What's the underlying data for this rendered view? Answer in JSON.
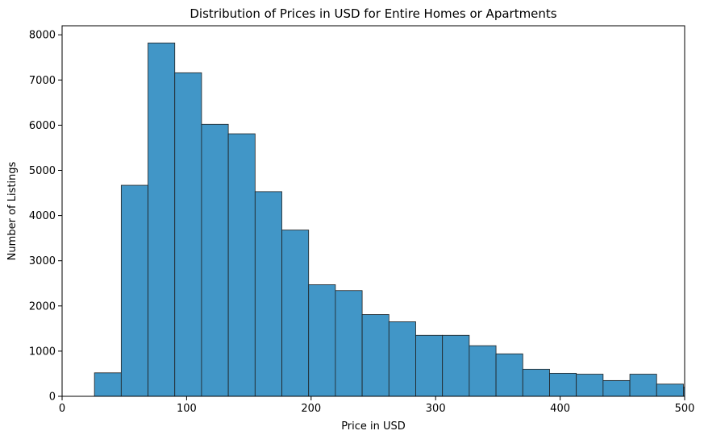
{
  "chart_data": {
    "type": "bar",
    "subtype": "histogram",
    "title": "Distribution of Prices in USD for Entire Homes or Apartments",
    "xlabel": "Price in USD",
    "ylabel": "Number of Listings",
    "xlim": [
      0,
      500
    ],
    "ylim": [
      0,
      8200
    ],
    "xticks": [
      0,
      100,
      200,
      300,
      400,
      500
    ],
    "yticks": [
      0,
      1000,
      2000,
      3000,
      4000,
      5000,
      6000,
      7000,
      8000
    ],
    "grid": false,
    "bar_color": "#4196c7",
    "edge_color": "#1f1f1f",
    "bins": [
      {
        "x0": 26.0,
        "x1": 47.5,
        "count": 520
      },
      {
        "x0": 47.5,
        "x1": 69.0,
        "count": 4670
      },
      {
        "x0": 69.0,
        "x1": 90.5,
        "count": 7820
      },
      {
        "x0": 90.5,
        "x1": 112.0,
        "count": 7160
      },
      {
        "x0": 112.0,
        "x1": 133.5,
        "count": 6020
      },
      {
        "x0": 133.5,
        "x1": 155.0,
        "count": 5810
      },
      {
        "x0": 155.0,
        "x1": 176.5,
        "count": 4530
      },
      {
        "x0": 176.5,
        "x1": 198.0,
        "count": 3680
      },
      {
        "x0": 198.0,
        "x1": 219.5,
        "count": 2470
      },
      {
        "x0": 219.5,
        "x1": 241.0,
        "count": 2340
      },
      {
        "x0": 241.0,
        "x1": 262.5,
        "count": 1810
      },
      {
        "x0": 262.5,
        "x1": 284.0,
        "count": 1650
      },
      {
        "x0": 284.0,
        "x1": 305.5,
        "count": 1350
      },
      {
        "x0": 305.5,
        "x1": 327.0,
        "count": 1350
      },
      {
        "x0": 327.0,
        "x1": 348.5,
        "count": 1120
      },
      {
        "x0": 348.5,
        "x1": 370.0,
        "count": 940
      },
      {
        "x0": 370.0,
        "x1": 391.5,
        "count": 600
      },
      {
        "x0": 391.5,
        "x1": 413.0,
        "count": 510
      },
      {
        "x0": 413.0,
        "x1": 434.5,
        "count": 490
      },
      {
        "x0": 434.5,
        "x1": 456.0,
        "count": 350
      },
      {
        "x0": 456.0,
        "x1": 477.5,
        "count": 490
      },
      {
        "x0": 477.5,
        "x1": 499.0,
        "count": 270
      },
      {
        "x0": 499.0,
        "x1": 520.5,
        "count": 200
      }
    ]
  }
}
